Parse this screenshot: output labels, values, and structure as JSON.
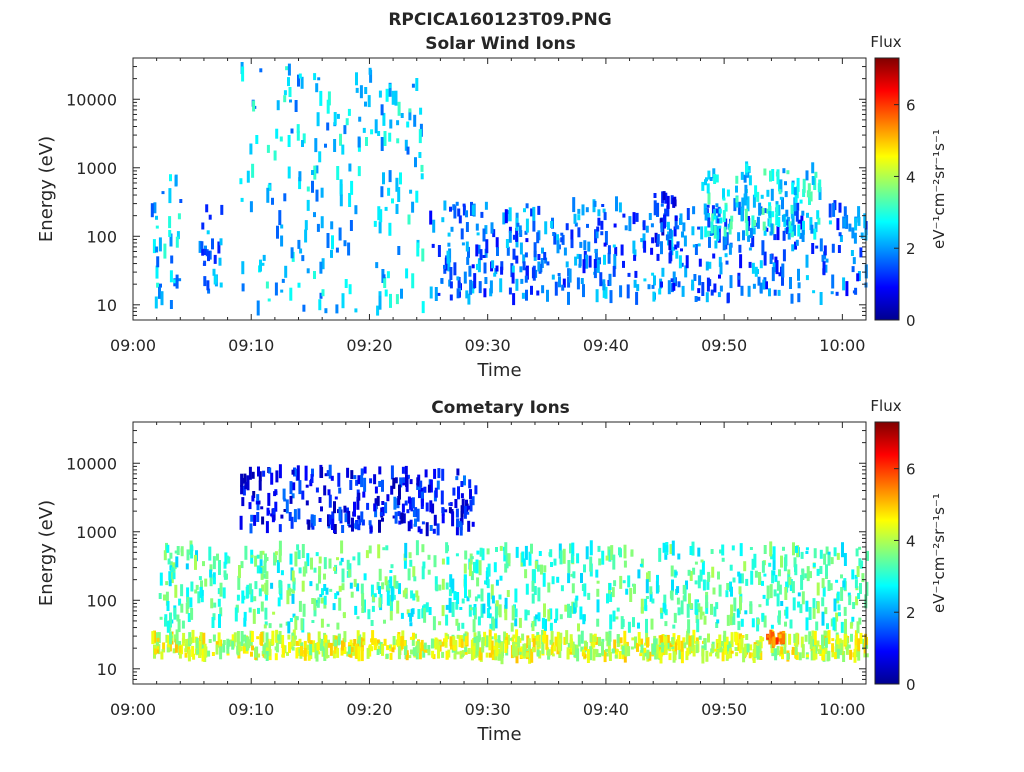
{
  "figure": {
    "title": "RPCICA160123T09.PNG"
  },
  "colorbar": {
    "label": "Flux",
    "unit": "eV⁻¹cm⁻²sr⁻¹s⁻¹",
    "range": [
      0,
      7.3
    ],
    "ticks": [
      "0",
      "2",
      "4",
      "6"
    ],
    "colormap": [
      "#00008f",
      "#0000ff",
      "#0080ff",
      "#00ffff",
      "#80ff80",
      "#ffff00",
      "#ff8000",
      "#ff0000",
      "#800000"
    ]
  },
  "chart_data": [
    {
      "type": "heatmap",
      "title": "Solar Wind Ions",
      "xlabel": "Time",
      "ylabel": "Energy (eV)",
      "xlim": [
        "09:00",
        "10:02"
      ],
      "ylim": [
        6,
        40000
      ],
      "yscale": "log",
      "x_ticks": [
        "09:00",
        "09:10",
        "09:20",
        "09:30",
        "09:40",
        "09:50",
        "10:00"
      ],
      "y_ticks": [
        "10",
        "100",
        "1000",
        "10000"
      ],
      "features": [
        {
          "t_start": 1.5,
          "t_end": 4.0,
          "e_min": 10,
          "e_max": 800,
          "flux": 2.3
        },
        {
          "t_start": 5.5,
          "t_end": 7.5,
          "e_min": 15,
          "e_max": 300,
          "flux": 1.8
        },
        {
          "t_start": 9.0,
          "t_end": 24.5,
          "e_min": 8,
          "e_max": 30000,
          "flux": 2.4
        },
        {
          "t_start": 25.0,
          "t_end": 62.0,
          "e_min": 12,
          "e_max": 300,
          "flux": 1.7
        },
        {
          "t_start": 44.0,
          "t_end": 46.0,
          "e_min": 60,
          "e_max": 400,
          "flux": 1.2
        },
        {
          "t_start": 48.0,
          "t_end": 58.0,
          "e_min": 100,
          "e_max": 1000,
          "flux": 2.6
        }
      ]
    },
    {
      "type": "heatmap",
      "title": "Cometary Ions",
      "xlabel": "Time",
      "ylabel": "Energy (eV)",
      "xlim": [
        "09:00",
        "10:02"
      ],
      "ylim": [
        6,
        40000
      ],
      "yscale": "log",
      "x_ticks": [
        "09:00",
        "09:10",
        "09:20",
        "09:30",
        "09:40",
        "09:50",
        "10:00"
      ],
      "y_ticks": [
        "10",
        "100",
        "1000",
        "10000"
      ],
      "features": [
        {
          "t_start": 1.5,
          "t_end": 62.0,
          "e_min": 15,
          "e_max": 30,
          "flux": 4.2
        },
        {
          "t_start": 2.0,
          "t_end": 62.0,
          "e_min": 40,
          "e_max": 600,
          "flux": 3.2
        },
        {
          "t_start": 9.0,
          "t_end": 29.0,
          "e_min": 1000,
          "e_max": 8000,
          "flux": 1.0
        },
        {
          "t_start": 53.5,
          "t_end": 55.0,
          "e_min": 25,
          "e_max": 32,
          "flux": 5.4
        }
      ]
    }
  ]
}
